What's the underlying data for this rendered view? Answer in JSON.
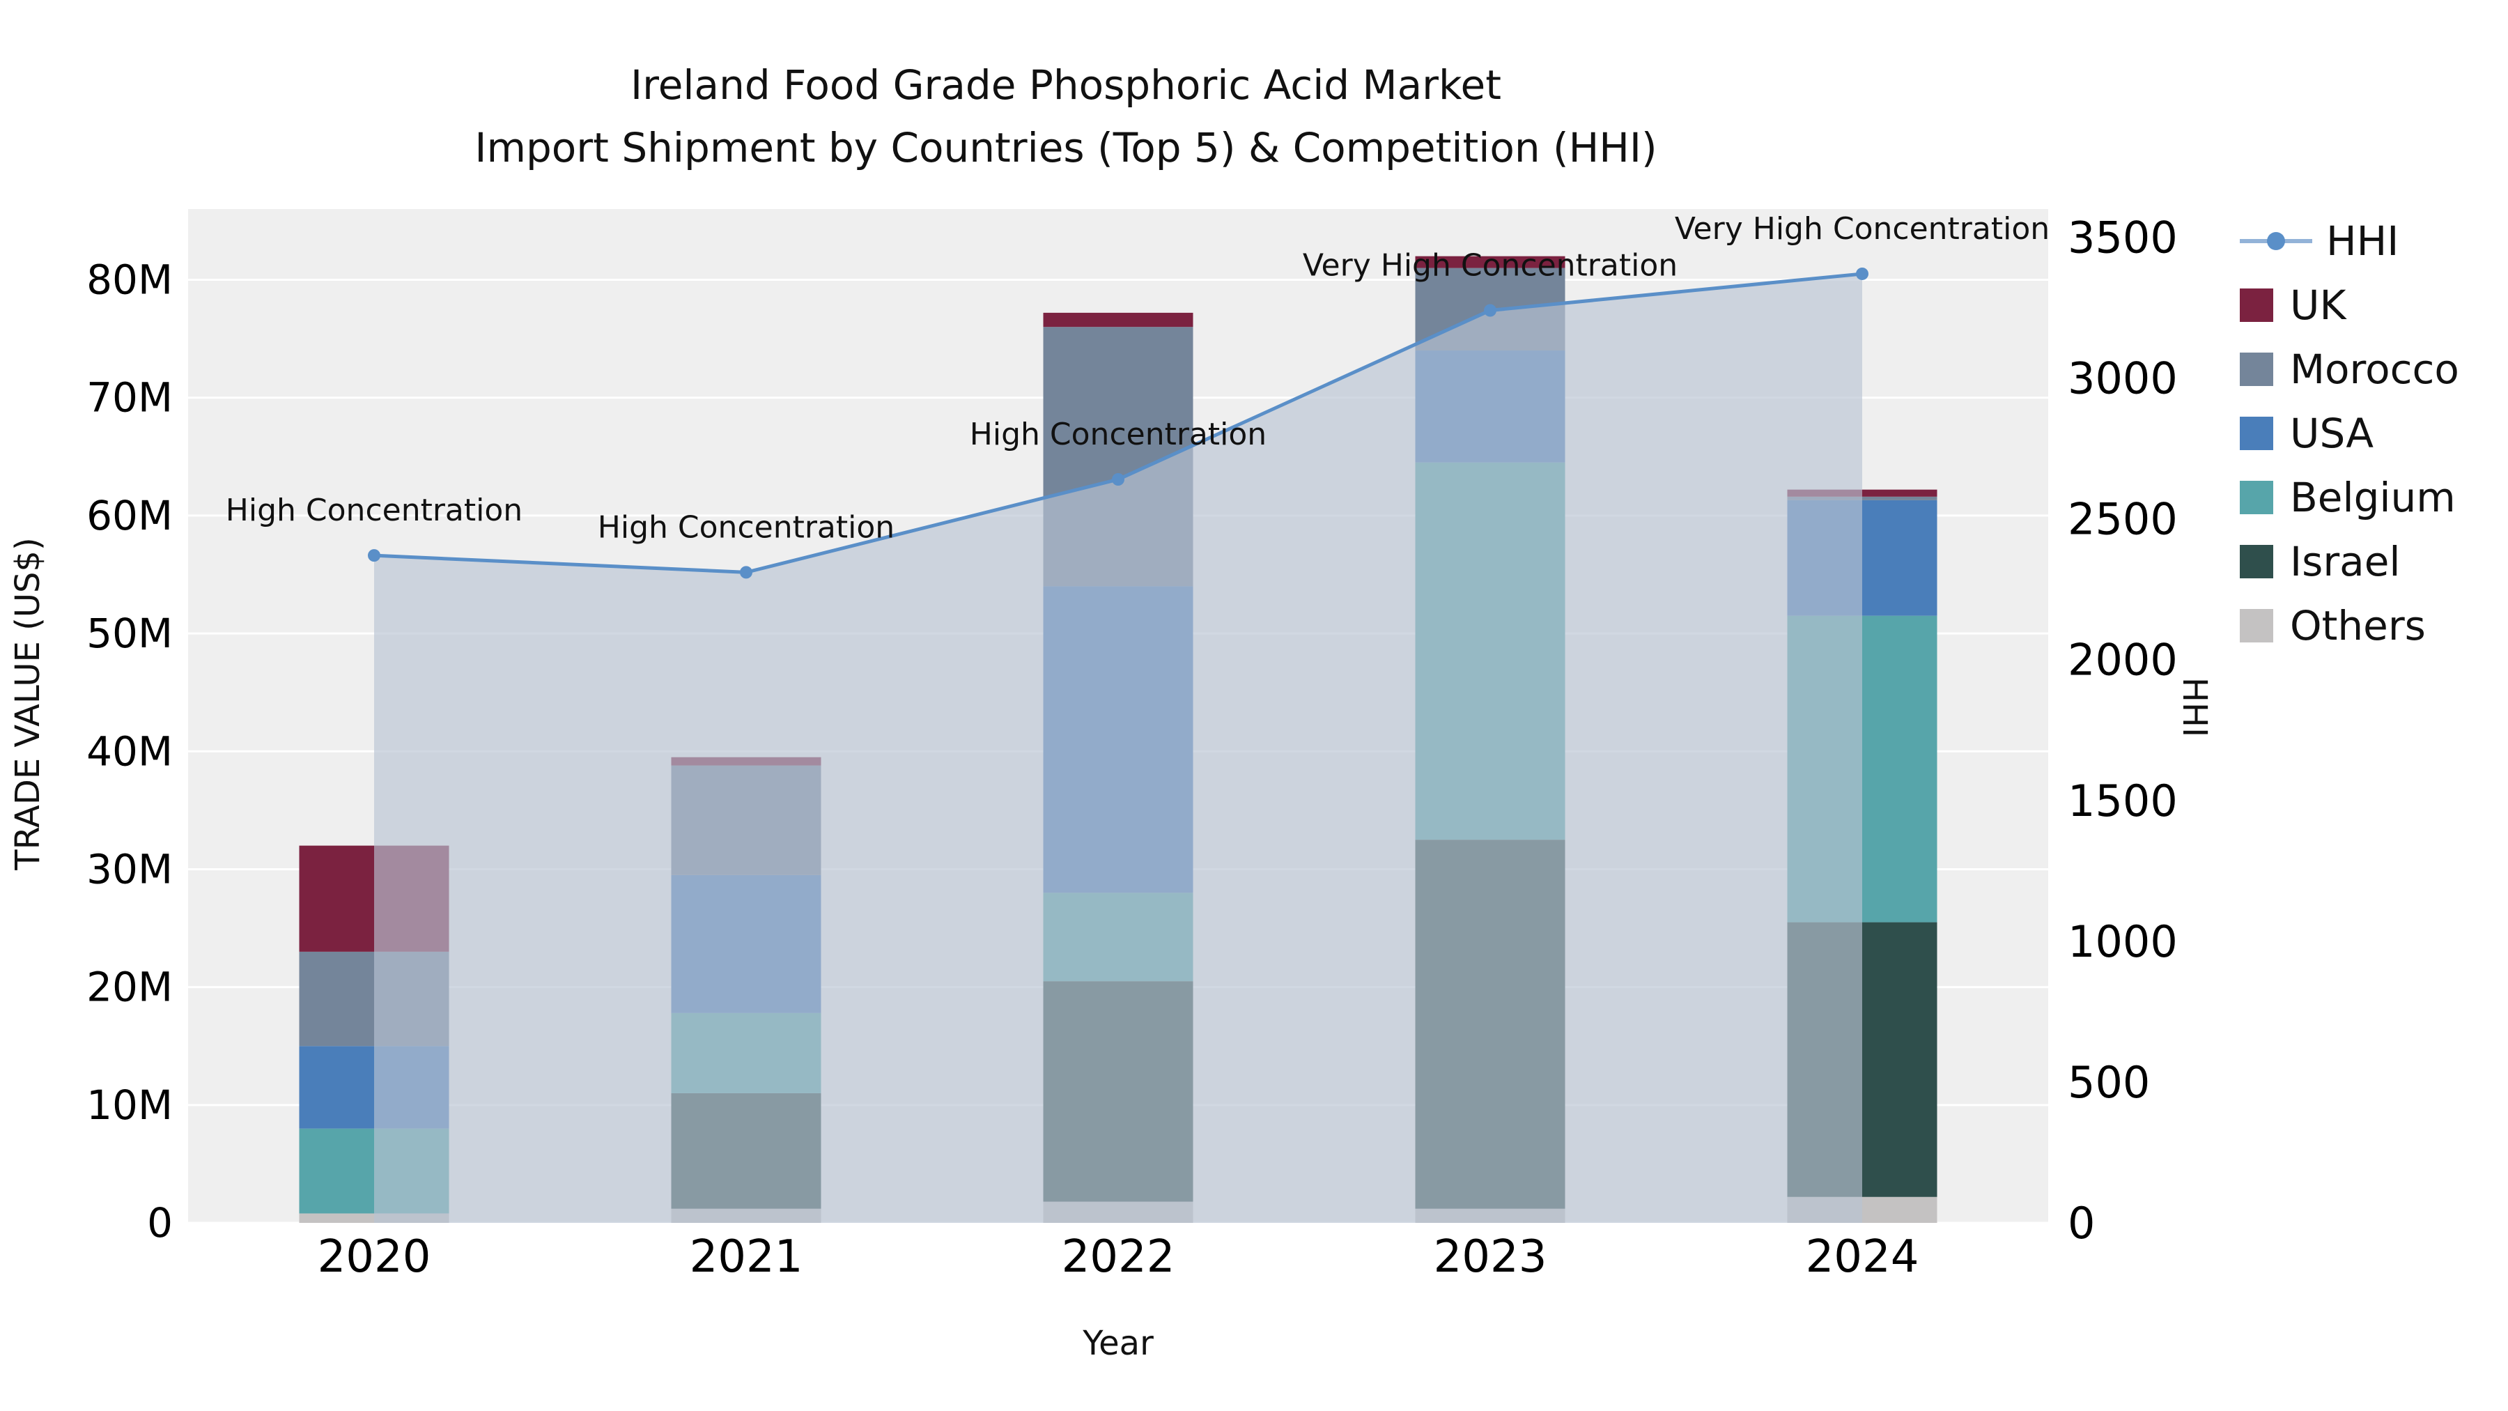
{
  "title": {
    "line1": "Ireland Food Grade Phosphoric Acid Market",
    "line2": "Import Shipment by Countries (Top 5) & Competition (HHI)"
  },
  "axes": {
    "x_label": "Year",
    "y_left_label": "TRADE VALUE (US$)",
    "y_right_label": "HHI"
  },
  "legend": {
    "items": [
      {
        "label": "HHI",
        "type": "line",
        "color": "#5a8fc8",
        "line_color": "#93b3d8"
      },
      {
        "label": "UK",
        "type": "swatch",
        "color": "#7b2240"
      },
      {
        "label": "Morocco",
        "type": "swatch",
        "color": "#74859a"
      },
      {
        "label": "USA",
        "type": "swatch",
        "color": "#4a7eba"
      },
      {
        "label": "Belgium",
        "type": "swatch",
        "color": "#57a5aa"
      },
      {
        "label": "Israel",
        "type": "swatch",
        "color": "#2f4f4c"
      },
      {
        "label": "Others",
        "type": "swatch",
        "color": "#c4c2c2"
      }
    ]
  },
  "chart_data": {
    "type": "bar",
    "subtype": "stacked-bar-with-hhi-line",
    "title": "Ireland Food Grade Phosphoric Acid Market — Import Shipment by Countries (Top 5) & Competition (HHI)",
    "xlabel": "Year",
    "ylabel_left": "TRADE VALUE (US$)",
    "ylabel_right": "HHI",
    "unit_left": "US$ millions",
    "categories": [
      "2020",
      "2021",
      "2022",
      "2023",
      "2024"
    ],
    "series": [
      {
        "name": "Others",
        "color": "#c4c2c2",
        "values": [
          0.8,
          1.2,
          1.8,
          1.2,
          2.2
        ]
      },
      {
        "name": "Israel",
        "color": "#2f4f4c",
        "values": [
          0.0,
          9.8,
          18.7,
          31.3,
          23.3
        ]
      },
      {
        "name": "Belgium",
        "color": "#57a5aa",
        "values": [
          7.2,
          6.8,
          7.5,
          32.0,
          26.0
        ]
      },
      {
        "name": "USA",
        "color": "#4a7eba",
        "values": [
          7.0,
          11.7,
          26.0,
          9.5,
          9.8
        ]
      },
      {
        "name": "Morocco",
        "color": "#74859a",
        "values": [
          8.0,
          9.3,
          22.0,
          7.0,
          0.3
        ]
      },
      {
        "name": "UK",
        "color": "#7b2240",
        "values": [
          9.0,
          0.7,
          1.2,
          1.0,
          0.6
        ]
      }
    ],
    "line_series": {
      "name": "HHI",
      "axis": "right",
      "color": "#5a8fc8",
      "area": true,
      "area_color": "#b9c3d2",
      "area_opacity": 0.65,
      "values": [
        2370,
        2310,
        2640,
        3240,
        3370
      ]
    },
    "annotations": [
      {
        "category": "2020",
        "text": "High Concentration"
      },
      {
        "category": "2021",
        "text": "High Concentration"
      },
      {
        "category": "2022",
        "text": "High Concentration"
      },
      {
        "category": "2023",
        "text": "Very High Concentration"
      },
      {
        "category": "2024",
        "text": "Very High Concentration"
      }
    ],
    "y_left": {
      "min": 0,
      "max": 86,
      "ticks": [
        0,
        10,
        20,
        30,
        40,
        50,
        60,
        70,
        80
      ],
      "tick_labels": [
        "0",
        "10M",
        "20M",
        "30M",
        "40M",
        "50M",
        "60M",
        "70M",
        "80M"
      ]
    },
    "y_right": {
      "min": 0,
      "max": 3600,
      "ticks": [
        0,
        500,
        1000,
        1500,
        2000,
        2500,
        3000,
        3500
      ],
      "tick_labels": [
        "0",
        "500",
        "1000",
        "1500",
        "2000",
        "2500",
        "3000",
        "3500"
      ]
    },
    "grid": "horizontal-white-on-light-gray",
    "plot_bg": "#efefef",
    "legend_position": "right"
  }
}
